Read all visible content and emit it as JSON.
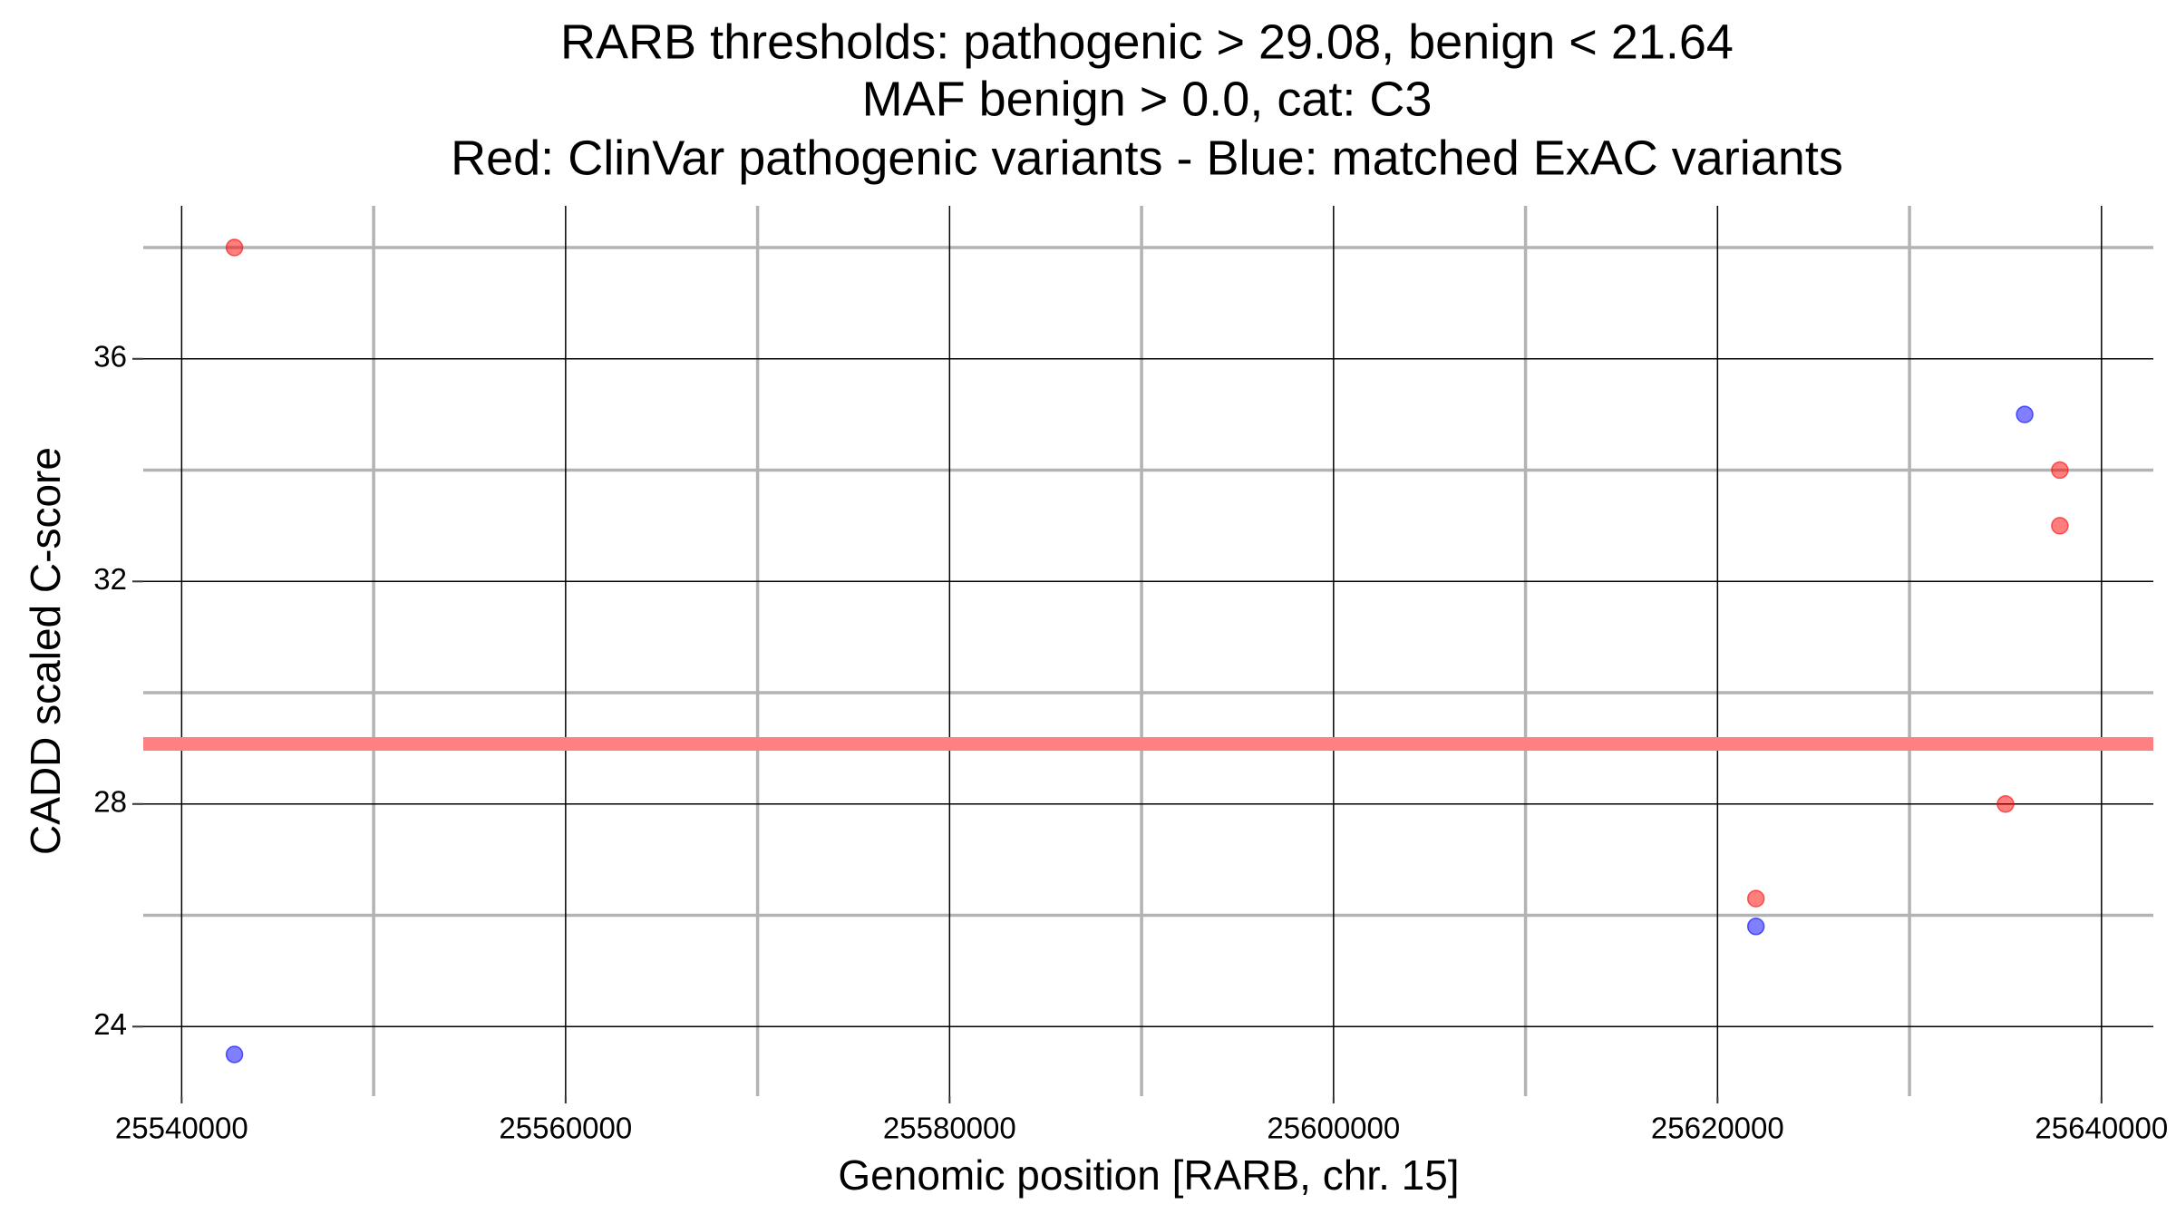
{
  "chart_data": {
    "type": "scatter",
    "title": [
      "RARB thresholds: pathogenic > 29.08, benign < 21.64",
      "MAF benign > 0.0, cat: C3",
      "Red: ClinVar pathogenic variants - Blue: matched ExAC variants"
    ],
    "x_label": "Genomic position [RARB, chr. 15]",
    "y_label": "CADD scaled C-score",
    "xlim": [
      25538000,
      25642700
    ],
    "ylim": [
      22.75,
      38.75
    ],
    "xticks": [
      25540000,
      25560000,
      25580000,
      25600000,
      25620000,
      25640000
    ],
    "yticks": [
      24,
      28,
      32,
      36
    ],
    "xminor": [
      25550000,
      25570000,
      25590000,
      25610000,
      25630000
    ],
    "yminor": [
      26,
      30,
      34,
      38
    ],
    "grid": true,
    "hlines": [
      {
        "value": 29.08,
        "color": "#ff8080"
      }
    ],
    "series": [
      {
        "color": "#ff0000",
        "x": [
          25542750,
          25637830,
          25637830,
          25635000,
          25622000
        ],
        "values": [
          38.0,
          34.0,
          33.0,
          28.0,
          26.3
        ]
      },
      {
        "color": "#0000ff",
        "x": [
          25542750,
          25636000,
          25622000
        ],
        "values": [
          23.5,
          35.0,
          25.8
        ]
      }
    ]
  }
}
